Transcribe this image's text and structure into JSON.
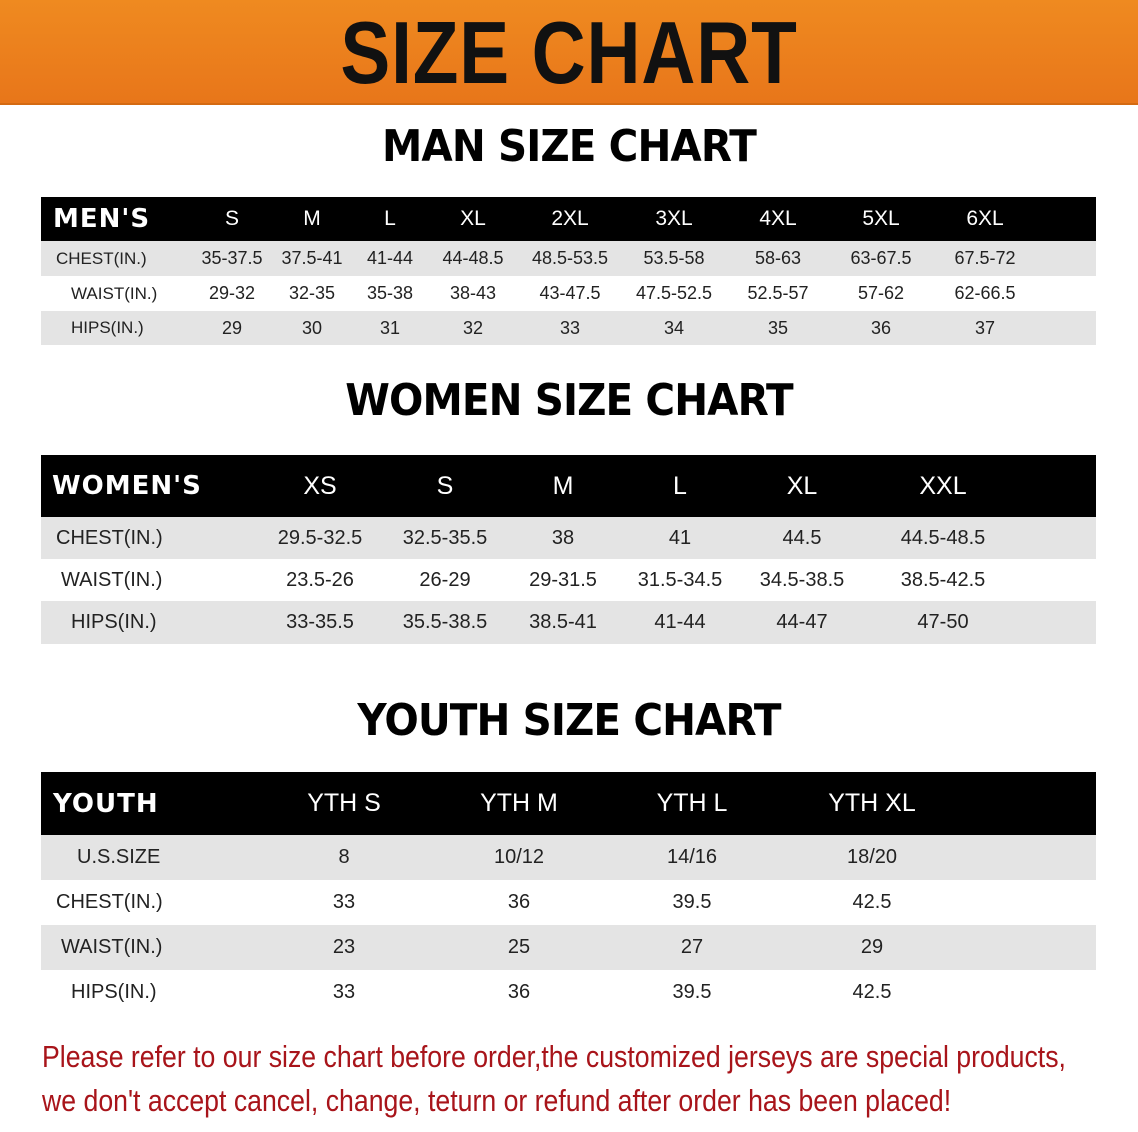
{
  "title": "SIZE CHART",
  "men": {
    "heading": "MAN SIZE CHART",
    "corner": "MEN'S",
    "columns": [
      "S",
      "M",
      "L",
      "XL",
      "2XL",
      "3XL",
      "4XL",
      "5XL",
      "6XL"
    ],
    "rows": [
      {
        "label": "CHEST(IN.)",
        "values": [
          "35-37.5",
          "37.5-41",
          "41-44",
          "44-48.5",
          "48.5-53.5",
          "53.5-58",
          "58-63",
          "63-67.5",
          "67.5-72"
        ]
      },
      {
        "label": "WAIST(IN.)",
        "values": [
          "29-32",
          "32-35",
          "35-38",
          "38-43",
          "43-47.5",
          "47.5-52.5",
          "52.5-57",
          "57-62",
          "62-66.5"
        ]
      },
      {
        "label": "HIPS(IN.)",
        "values": [
          "29",
          "30",
          "31",
          "32",
          "33",
          "34",
          "35",
          "36",
          "37"
        ]
      }
    ]
  },
  "women": {
    "heading": "WOMEN SIZE CHART",
    "corner": "WOMEN'S",
    "columns": [
      "XS",
      "S",
      "M",
      "L",
      "XL",
      "XXL"
    ],
    "rows": [
      {
        "label": "CHEST(IN.)",
        "values": [
          "29.5-32.5",
          "32.5-35.5",
          "38",
          "41",
          "44.5",
          "44.5-48.5"
        ]
      },
      {
        "label": "WAIST(IN.)",
        "values": [
          "23.5-26",
          "26-29",
          "29-31.5",
          "31.5-34.5",
          "34.5-38.5",
          "38.5-42.5"
        ]
      },
      {
        "label": "HIPS(IN.)",
        "values": [
          "33-35.5",
          "35.5-38.5",
          "38.5-41",
          "41-44",
          "44-47",
          "47-50"
        ]
      }
    ]
  },
  "youth": {
    "heading": "YOUTH SIZE CHART",
    "corner": "YOUTH",
    "columns": [
      "YTH S",
      "YTH M",
      "YTH L",
      "YTH XL"
    ],
    "rows": [
      {
        "label": "U.S.SIZE",
        "values": [
          "8",
          "10/12",
          "14/16",
          "18/20"
        ]
      },
      {
        "label": "CHEST(IN.)",
        "values": [
          "33",
          "36",
          "39.5",
          "42.5"
        ]
      },
      {
        "label": "WAIST(IN.)",
        "values": [
          "23",
          "25",
          "27",
          "29"
        ]
      },
      {
        "label": "HIPS(IN.)",
        "values": [
          "33",
          "36",
          "39.5",
          "42.5"
        ]
      }
    ]
  },
  "notice": {
    "line1": "Please refer to our size chart before order,the customized jerseys are special products,",
    "line2": "we don't accept cancel, change, teturn or refund after order has been placed!"
  },
  "colors": {
    "banner": "#ef8a20",
    "header": "#000000",
    "row_alt": "#e4e4e4",
    "notice": "#a8141a"
  }
}
